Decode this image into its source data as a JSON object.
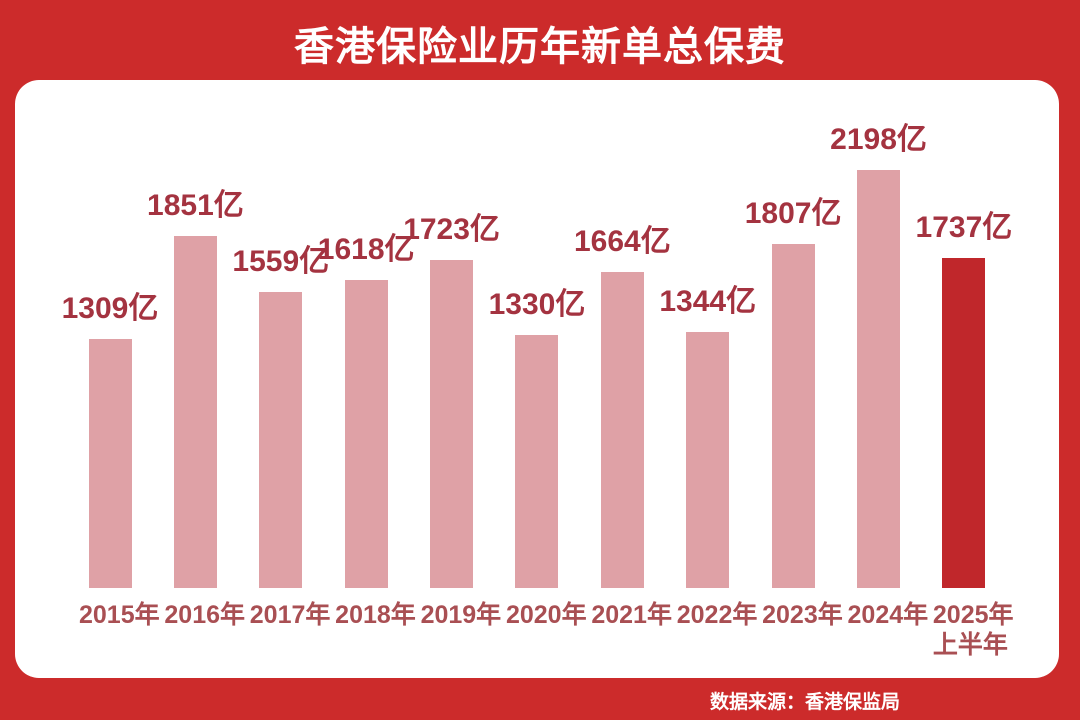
{
  "header": {
    "title": "香港保险业历年新单总保费"
  },
  "footer": {
    "source": "数据来源：香港保监局"
  },
  "chart_data": {
    "type": "bar",
    "title": "香港保险业历年新单总保费",
    "unit": "亿",
    "categories": [
      "2015年",
      "2016年",
      "2017年",
      "2018年",
      "2019年",
      "2020年",
      "2021年",
      "2022年",
      "2023年",
      "2024年",
      "2025年上半年"
    ],
    "category_lines": [
      [
        "2015年"
      ],
      [
        "2016年"
      ],
      [
        "2017年"
      ],
      [
        "2018年"
      ],
      [
        "2019年"
      ],
      [
        "2020年"
      ],
      [
        "2021年"
      ],
      [
        "2022年"
      ],
      [
        "2023年"
      ],
      [
        "2024年"
      ],
      [
        "2025年",
        "上半年"
      ]
    ],
    "values": [
      1309,
      1851,
      1559,
      1618,
      1723,
      1330,
      1664,
      1344,
      1807,
      2198,
      1737
    ],
    "value_labels": [
      "1309亿",
      "1851亿",
      "1559亿",
      "1618亿",
      "1723亿",
      "1330亿",
      "1664亿",
      "1344亿",
      "1807亿",
      "2198亿",
      "1737亿"
    ],
    "highlight_index": 10,
    "ylim": [
      0,
      2300
    ],
    "grid": false,
    "legend": "none",
    "colors": {
      "background": "#cc2b2b",
      "card": "#ffffff",
      "bar": "#dfa1a6",
      "bar_highlight": "#c0272b",
      "value_label": "#a43340",
      "category_label": "#a94f53",
      "title_text": "#ffffff",
      "source_text": "#ffffff"
    }
  }
}
